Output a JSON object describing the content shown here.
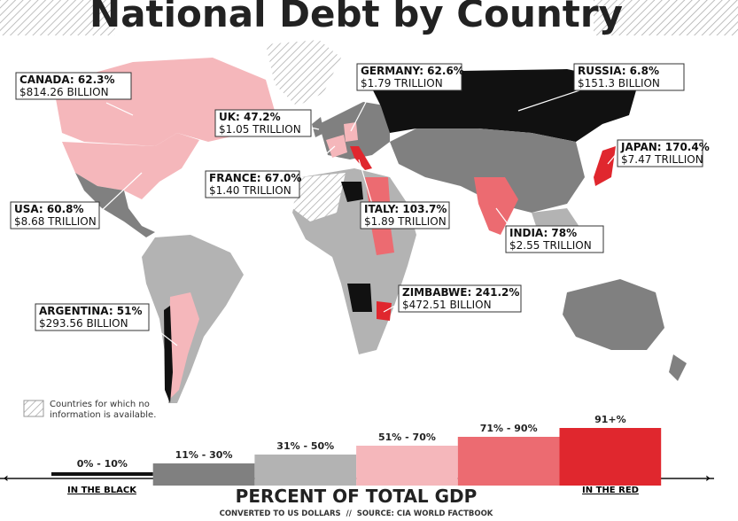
{
  "title": "National Debt by Country",
  "callouts": [
    {
      "name": "CANADA: 62.3%",
      "amount": "$814.26 BILLION"
    },
    {
      "name": "GERMANY: 62.6%",
      "amount": "$1.79 TRILLION"
    },
    {
      "name": "RUSSIA: 6.8%",
      "amount": "$151.3 BILLION"
    },
    {
      "name": "UK: 47.2%",
      "amount": "$1.05 TRILLION"
    },
    {
      "name": "JAPAN: 170.4%",
      "amount": "$7.47 TRILLION"
    },
    {
      "name": "FRANCE: 67.0%",
      "amount": "$1.40 TRILLION"
    },
    {
      "name": "USA: 60.8%",
      "amount": "$8.68 TRILLION"
    },
    {
      "name": "ITALY: 103.7%",
      "amount": "$1.89 TRILLION"
    },
    {
      "name": "INDIA: 78%",
      "amount": "$2.55 TRILLION"
    },
    {
      "name": "ZIMBABWE: 241.2%",
      "amount": "$472.51 BILLION"
    },
    {
      "name": "ARGENTINA: 51%",
      "amount": "$293.56 BILLION"
    }
  ],
  "no_info_note": [
    "Countries for which no",
    "information is available."
  ],
  "legend": {
    "bins": [
      {
        "label": "0% - 10%",
        "color": "#111111"
      },
      {
        "label": "11% - 30%",
        "color": "#808080"
      },
      {
        "label": "31% - 50%",
        "color": "#b3b3b3"
      },
      {
        "label": "51% - 70%",
        "color": "#f5b7bb"
      },
      {
        "label": "71% - 90%",
        "color": "#ec6b71"
      },
      {
        "label": "91+%",
        "color": "#e0272e"
      }
    ],
    "low_label": "IN THE BLACK",
    "high_label": "IN THE RED",
    "title": "PERCENT OF TOTAL GDP",
    "source": "CONVERTED TO US DOLLARS  //  SOURCE: CIA WORLD FACTBOOK"
  }
}
